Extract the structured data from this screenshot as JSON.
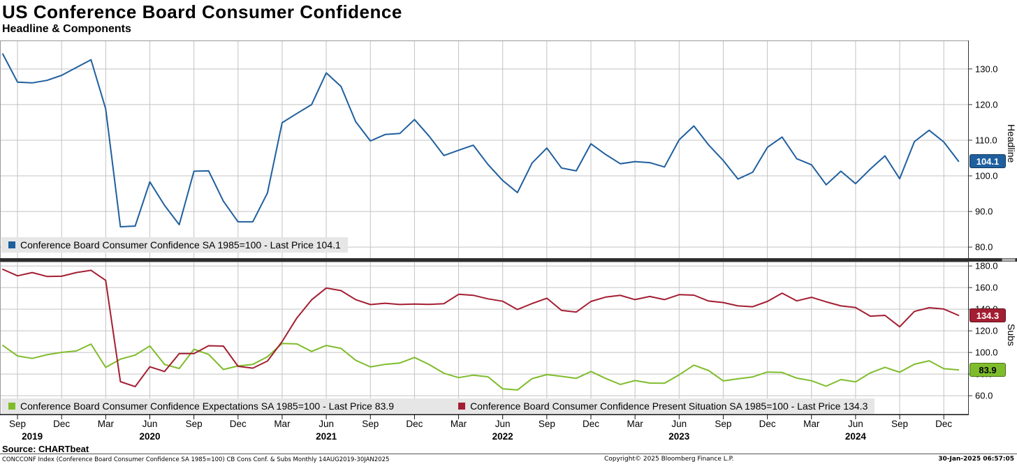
{
  "header": {
    "title": "US Conference Board Consumer Confidence",
    "subtitle": "Headline & Components"
  },
  "source_label": "Source: CHARTbeat",
  "footer": {
    "left": "CONCCONF Index (Conference Board Consumer Confidence SA 1985=100) CB Cons Conf. & Subs  Monthly 14AUG2019-30JAN2025",
    "center": "Copyright© 2025 Bloomberg Finance L.P.",
    "right": "30-Jan-2025 06:57:05"
  },
  "chart_data": {
    "type": "line",
    "grid": true,
    "legend_position": "inside-bottom-left",
    "x_months": [
      "Aug 2019",
      "Sep 2019",
      "Oct 2019",
      "Nov 2019",
      "Dec 2019",
      "Jan 2020",
      "Feb 2020",
      "Mar 2020",
      "Apr 2020",
      "May 2020",
      "Jun 2020",
      "Jul 2020",
      "Aug 2020",
      "Sep 2020",
      "Oct 2020",
      "Nov 2020",
      "Dec 2020",
      "Jan 2021",
      "Feb 2021",
      "Mar 2021",
      "Apr 2021",
      "May 2021",
      "Jun 2021",
      "Jul 2021",
      "Aug 2021",
      "Sep 2021",
      "Oct 2021",
      "Nov 2021",
      "Dec 2021",
      "Jan 2022",
      "Feb 2022",
      "Mar 2022",
      "Apr 2022",
      "May 2022",
      "Jun 2022",
      "Jul 2022",
      "Aug 2022",
      "Sep 2022",
      "Oct 2022",
      "Nov 2022",
      "Dec 2022",
      "Jan 2023",
      "Feb 2023",
      "Mar 2023",
      "Apr 2023",
      "May 2023",
      "Jun 2023",
      "Jul 2023",
      "Aug 2023",
      "Sep 2023",
      "Oct 2023",
      "Nov 2023",
      "Dec 2023",
      "Jan 2024",
      "Feb 2024",
      "Mar 2024",
      "Apr 2024",
      "May 2024",
      "Jun 2024",
      "Jul 2024",
      "Aug 2024",
      "Sep 2024",
      "Oct 2024",
      "Nov 2024",
      "Dec 2024",
      "Jan 2025"
    ],
    "x_ticks": [
      {
        "i": 1,
        "label": "Sep"
      },
      {
        "i": 4,
        "label": "Dec"
      },
      {
        "i": 7,
        "label": "Mar"
      },
      {
        "i": 10,
        "label": "Jun"
      },
      {
        "i": 13,
        "label": "Sep"
      },
      {
        "i": 16,
        "label": "Dec"
      },
      {
        "i": 19,
        "label": "Mar"
      },
      {
        "i": 22,
        "label": "Jun"
      },
      {
        "i": 25,
        "label": "Sep"
      },
      {
        "i": 28,
        "label": "Dec"
      },
      {
        "i": 31,
        "label": "Mar"
      },
      {
        "i": 34,
        "label": "Jun"
      },
      {
        "i": 37,
        "label": "Sep"
      },
      {
        "i": 40,
        "label": "Dec"
      },
      {
        "i": 43,
        "label": "Mar"
      },
      {
        "i": 46,
        "label": "Jun"
      },
      {
        "i": 49,
        "label": "Sep"
      },
      {
        "i": 52,
        "label": "Dec"
      },
      {
        "i": 55,
        "label": "Mar"
      },
      {
        "i": 58,
        "label": "Jun"
      },
      {
        "i": 61,
        "label": "Sep"
      },
      {
        "i": 64,
        "label": "Dec"
      }
    ],
    "year_labels": [
      {
        "i": 2,
        "label": "2019"
      },
      {
        "i": 10,
        "label": "2020"
      },
      {
        "i": 22,
        "label": "2021"
      },
      {
        "i": 34,
        "label": "2022"
      },
      {
        "i": 46,
        "label": "2023"
      },
      {
        "i": 58,
        "label": "2024"
      }
    ],
    "panels": [
      {
        "axis_label": "Headline",
        "ylim": [
          76.5,
          138
        ],
        "yticks": [
          130,
          120,
          110,
          100,
          90,
          80
        ],
        "series": [
          {
            "id": "headline",
            "name": "Conference Board Consumer Confidence SA 1985=100",
            "legend_label": "Conference Board Consumer Confidence SA 1985=100 - Last Price 104.1",
            "color": "#1f5f9e",
            "badge_text_color": "#ffffff",
            "last_price_label": "104.1",
            "values": [
              134.2,
              126.3,
              126.1,
              126.8,
              128.2,
              130.4,
              132.6,
              118.8,
              85.7,
              85.9,
              98.3,
              91.7,
              86.3,
              101.3,
              101.4,
              92.9,
              87.1,
              87.1,
              95.2,
              114.9,
              117.5,
              120.0,
              128.9,
              125.1,
              115.2,
              109.8,
              111.6,
              111.9,
              115.8,
              111.1,
              105.7,
              107.2,
              108.6,
              103.2,
              98.7,
              95.3,
              103.6,
              107.8,
              102.2,
              101.4,
              109.0,
              106.0,
              103.4,
              104.0,
              103.7,
              102.5,
              110.1,
              114.0,
              108.7,
              104.3,
              99.1,
              101.0,
              108.0,
              110.9,
              104.8,
              103.1,
              97.5,
              101.3,
              97.8,
              101.9,
              105.6,
              99.2,
              109.6,
              112.8,
              109.5,
              104.1
            ]
          }
        ]
      },
      {
        "axis_label": "Subs",
        "ylim": [
          42,
          184
        ],
        "yticks": [
          180,
          160,
          140,
          120,
          100,
          80,
          60
        ],
        "series": [
          {
            "id": "expectations",
            "name": "Conference Board Consumer Confidence Expectations SA 1985=100",
            "legend_label": "Conference Board Consumer Confidence Expectations SA 1985=100 - Last Price 83.9",
            "color": "#7fbc2b",
            "badge_text_color": "#000000",
            "last_price_label": "83.9",
            "values": [
              106.5,
              96.8,
              94.5,
              97.9,
              100.1,
              101.4,
              107.8,
              86.2,
              93.8,
              97.6,
              106.0,
              88.9,
              85.2,
              102.9,
              98.2,
              84.3,
              87.5,
              89.0,
              96.0,
              108.3,
              107.9,
              100.9,
              106.5,
              103.8,
              92.8,
              86.6,
              89.0,
              90.2,
              95.4,
              88.8,
              80.8,
              76.7,
              79.0,
              77.5,
              66.4,
              65.3,
              75.8,
              79.5,
              77.9,
              76.0,
              82.4,
              76.0,
              70.4,
              74.0,
              71.7,
              71.5,
              79.3,
              88.3,
              83.3,
              73.7,
              75.6,
              77.4,
              81.9,
              81.5,
              76.3,
              73.8,
              68.8,
              74.9,
              72.8,
              81.1,
              86.3,
              81.7,
              89.1,
              92.3,
              85.0,
              83.9
            ]
          },
          {
            "id": "present_situation",
            "name": "Conference Board Consumer Confidence Present Situation SA 1985=100",
            "legend_label": "Conference Board Consumer Confidence Present Situation SA 1985=100 - Last Price 134.3",
            "color": "#a31e32",
            "badge_text_color": "#ffffff",
            "last_price_label": "134.3",
            "values": [
              176.9,
              170.9,
              173.9,
              170.3,
              170.5,
              173.9,
              176.0,
              166.7,
              73.0,
              68.4,
              86.7,
              82.4,
              98.9,
              98.9,
              106.2,
              105.9,
              87.2,
              85.5,
              92.0,
              110.1,
              131.9,
              148.7,
              159.6,
              157.2,
              148.9,
              144.3,
              145.5,
              144.4,
              144.8,
              144.5,
              145.1,
              153.8,
              152.9,
              149.6,
              147.4,
              139.7,
              145.3,
              150.2,
              138.9,
              137.4,
              147.2,
              151.2,
              152.8,
              148.9,
              151.8,
              148.9,
              153.5,
              153.0,
              147.6,
              146.2,
              143.1,
              142.3,
              147.2,
              154.9,
              147.7,
              151.0,
              146.8,
              143.1,
              141.5,
              133.6,
              134.3,
              123.8,
              138.0,
              141.4,
              140.2,
              134.3
            ]
          }
        ]
      }
    ]
  }
}
